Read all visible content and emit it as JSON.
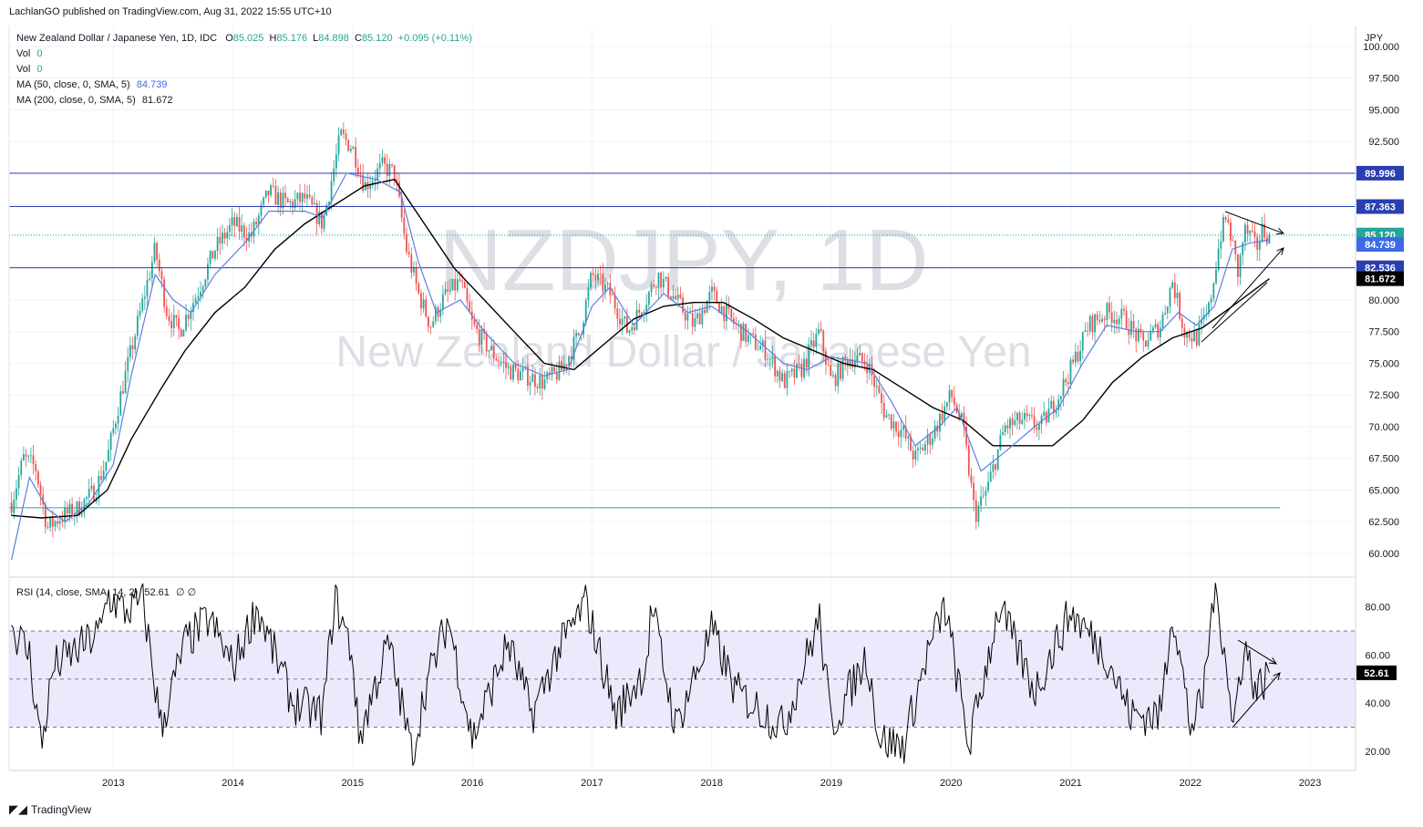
{
  "header": {
    "publisher_line": "LachlanGO published on TradingView.com, Aug 31, 2022 15:55 UTC+10"
  },
  "legend": {
    "symbol": "New Zealand Dollar / Japanese Yen, 1D, IDC",
    "o_label": "O",
    "o_value": "85.025",
    "h_label": "H",
    "h_value": "85.176",
    "l_label": "L",
    "l_value": "84.898",
    "c_label": "C",
    "c_value": "85.120",
    "change": "+0.095 (+0.11%)",
    "vol1_label": "Vol",
    "vol1_value": "0",
    "vol2_label": "Vol",
    "vol2_value": "0",
    "ma50_label": "MA (50, close, 0, SMA, 5)",
    "ma50_value": "84.739",
    "ma200_label": "MA (200, close, 0, SMA, 5)",
    "ma200_value": "81.672",
    "rsi_label": "RSI (14, close, SMA, 14, 2)",
    "rsi_value": "52.61",
    "rsi_extra": "∅ ∅"
  },
  "watermark": {
    "symbol": "NZDJPY, 1D",
    "name": "New Zealand Dollar / Japanese Yen"
  },
  "footer": {
    "brand": "TradingView",
    "logo_icon": "tradingview-logo-icon"
  },
  "colors": {
    "up": "#26a69a",
    "down": "#ef5350",
    "ma50": "#5b7fe0",
    "ma200": "#000000",
    "hline": "#2a3fb0",
    "rsi_band": "#ede8fb",
    "grid": "#f0f3fa"
  },
  "chart_data": [
    {
      "type": "candlestick",
      "title": "New Zealand Dollar / Japanese Yen, 1D, IDC",
      "y_unit": "JPY",
      "x_ticks": [
        "2013",
        "2014",
        "2015",
        "2016",
        "2017",
        "2018",
        "2019",
        "2020",
        "2021",
        "2022",
        "2023"
      ],
      "y_ticks": [
        "60.000",
        "62.500",
        "65.000",
        "67.500",
        "70.000",
        "72.500",
        "75.000",
        "77.500",
        "80.000",
        "82.500",
        "85.000",
        "87.500",
        "90.000",
        "92.500",
        "95.000",
        "97.500",
        "100.000"
      ],
      "ylim": [
        58.2,
        101.5
      ],
      "series_close_approx": [
        {
          "t": 2012.15,
          "v": 64.0
        },
        {
          "t": 2012.25,
          "v": 67.5
        },
        {
          "t": 2012.35,
          "v": 66.8
        },
        {
          "t": 2012.45,
          "v": 62.0
        },
        {
          "t": 2012.55,
          "v": 62.8
        },
        {
          "t": 2012.7,
          "v": 63.5
        },
        {
          "t": 2012.85,
          "v": 65.0
        },
        {
          "t": 2012.95,
          "v": 67.5
        },
        {
          "t": 2013.05,
          "v": 72.0
        },
        {
          "t": 2013.15,
          "v": 76.0
        },
        {
          "t": 2013.25,
          "v": 80.0
        },
        {
          "t": 2013.35,
          "v": 84.0
        },
        {
          "t": 2013.45,
          "v": 79.0
        },
        {
          "t": 2013.55,
          "v": 77.5
        },
        {
          "t": 2013.7,
          "v": 80.5
        },
        {
          "t": 2013.85,
          "v": 84.0
        },
        {
          "t": 2014.0,
          "v": 86.0
        },
        {
          "t": 2014.15,
          "v": 85.0
        },
        {
          "t": 2014.3,
          "v": 88.5
        },
        {
          "t": 2014.45,
          "v": 87.5
        },
        {
          "t": 2014.6,
          "v": 88.0
        },
        {
          "t": 2014.75,
          "v": 86.0
        },
        {
          "t": 2014.9,
          "v": 93.0
        },
        {
          "t": 2015.0,
          "v": 92.0
        },
        {
          "t": 2015.1,
          "v": 89.0
        },
        {
          "t": 2015.25,
          "v": 90.5
        },
        {
          "t": 2015.35,
          "v": 90.0
        },
        {
          "t": 2015.45,
          "v": 84.0
        },
        {
          "t": 2015.55,
          "v": 80.5
        },
        {
          "t": 2015.65,
          "v": 78.0
        },
        {
          "t": 2015.75,
          "v": 80.0
        },
        {
          "t": 2015.9,
          "v": 81.5
        },
        {
          "t": 2016.0,
          "v": 78.0
        },
        {
          "t": 2016.15,
          "v": 76.0
        },
        {
          "t": 2016.3,
          "v": 74.5
        },
        {
          "t": 2016.45,
          "v": 74.0
        },
        {
          "t": 2016.6,
          "v": 73.5
        },
        {
          "t": 2016.75,
          "v": 74.5
        },
        {
          "t": 2016.9,
          "v": 77.5
        },
        {
          "t": 2017.0,
          "v": 82.0
        },
        {
          "t": 2017.15,
          "v": 80.5
        },
        {
          "t": 2017.3,
          "v": 77.5
        },
        {
          "t": 2017.45,
          "v": 80.0
        },
        {
          "t": 2017.55,
          "v": 82.0
        },
        {
          "t": 2017.7,
          "v": 80.0
        },
        {
          "t": 2017.85,
          "v": 78.0
        },
        {
          "t": 2018.0,
          "v": 80.5
        },
        {
          "t": 2018.15,
          "v": 78.5
        },
        {
          "t": 2018.3,
          "v": 77.0
        },
        {
          "t": 2018.45,
          "v": 76.0
        },
        {
          "t": 2018.6,
          "v": 73.5
        },
        {
          "t": 2018.75,
          "v": 74.5
        },
        {
          "t": 2018.9,
          "v": 77.5
        },
        {
          "t": 2019.0,
          "v": 73.5
        },
        {
          "t": 2019.15,
          "v": 75.5
        },
        {
          "t": 2019.3,
          "v": 75.0
        },
        {
          "t": 2019.45,
          "v": 71.0
        },
        {
          "t": 2019.6,
          "v": 69.5
        },
        {
          "t": 2019.7,
          "v": 67.5
        },
        {
          "t": 2019.85,
          "v": 69.5
        },
        {
          "t": 2020.0,
          "v": 72.5
        },
        {
          "t": 2020.1,
          "v": 70.0
        },
        {
          "t": 2020.2,
          "v": 63.0
        },
        {
          "t": 2020.3,
          "v": 65.0
        },
        {
          "t": 2020.45,
          "v": 70.0
        },
        {
          "t": 2020.6,
          "v": 70.5
        },
        {
          "t": 2020.75,
          "v": 70.0
        },
        {
          "t": 2020.9,
          "v": 72.5
        },
        {
          "t": 2021.0,
          "v": 74.5
        },
        {
          "t": 2021.15,
          "v": 78.0
        },
        {
          "t": 2021.3,
          "v": 79.0
        },
        {
          "t": 2021.45,
          "v": 78.5
        },
        {
          "t": 2021.6,
          "v": 76.5
        },
        {
          "t": 2021.75,
          "v": 78.0
        },
        {
          "t": 2021.85,
          "v": 81.5
        },
        {
          "t": 2021.95,
          "v": 77.5
        },
        {
          "t": 2022.05,
          "v": 77.0
        },
        {
          "t": 2022.15,
          "v": 79.0
        },
        {
          "t": 2022.25,
          "v": 85.0
        },
        {
          "t": 2022.3,
          "v": 86.5
        },
        {
          "t": 2022.35,
          "v": 84.5
        },
        {
          "t": 2022.4,
          "v": 82.0
        },
        {
          "t": 2022.45,
          "v": 85.5
        },
        {
          "t": 2022.5,
          "v": 85.0
        },
        {
          "t": 2022.55,
          "v": 84.0
        },
        {
          "t": 2022.6,
          "v": 85.5
        },
        {
          "t": 2022.66,
          "v": 85.12
        }
      ],
      "ma50_approx": [
        {
          "t": 2012.15,
          "v": 59.5
        },
        {
          "t": 2012.3,
          "v": 66.0
        },
        {
          "t": 2012.45,
          "v": 63.5
        },
        {
          "t": 2012.6,
          "v": 62.5
        },
        {
          "t": 2012.8,
          "v": 64.0
        },
        {
          "t": 2013.0,
          "v": 67.0
        },
        {
          "t": 2013.15,
          "v": 74.0
        },
        {
          "t": 2013.35,
          "v": 82.0
        },
        {
          "t": 2013.5,
          "v": 80.0
        },
        {
          "t": 2013.65,
          "v": 79.0
        },
        {
          "t": 2013.85,
          "v": 82.0
        },
        {
          "t": 2014.1,
          "v": 84.5
        },
        {
          "t": 2014.3,
          "v": 87.0
        },
        {
          "t": 2014.6,
          "v": 87.0
        },
        {
          "t": 2014.75,
          "v": 86.5
        },
        {
          "t": 2014.95,
          "v": 90.0
        },
        {
          "t": 2015.2,
          "v": 89.5
        },
        {
          "t": 2015.4,
          "v": 88.5
        },
        {
          "t": 2015.55,
          "v": 83.0
        },
        {
          "t": 2015.7,
          "v": 79.0
        },
        {
          "t": 2015.9,
          "v": 80.0
        },
        {
          "t": 2016.1,
          "v": 77.5
        },
        {
          "t": 2016.35,
          "v": 75.0
        },
        {
          "t": 2016.6,
          "v": 74.0
        },
        {
          "t": 2016.8,
          "v": 74.5
        },
        {
          "t": 2017.0,
          "v": 79.5
        },
        {
          "t": 2017.15,
          "v": 81.0
        },
        {
          "t": 2017.35,
          "v": 78.0
        },
        {
          "t": 2017.6,
          "v": 80.5
        },
        {
          "t": 2017.8,
          "v": 79.0
        },
        {
          "t": 2018.0,
          "v": 79.5
        },
        {
          "t": 2018.3,
          "v": 77.5
        },
        {
          "t": 2018.6,
          "v": 75.0
        },
        {
          "t": 2018.8,
          "v": 74.5
        },
        {
          "t": 2019.0,
          "v": 75.5
        },
        {
          "t": 2019.3,
          "v": 75.0
        },
        {
          "t": 2019.5,
          "v": 72.0
        },
        {
          "t": 2019.7,
          "v": 68.5
        },
        {
          "t": 2019.9,
          "v": 70.0
        },
        {
          "t": 2020.05,
          "v": 71.5
        },
        {
          "t": 2020.25,
          "v": 66.5
        },
        {
          "t": 2020.45,
          "v": 68.0
        },
        {
          "t": 2020.7,
          "v": 70.0
        },
        {
          "t": 2020.9,
          "v": 71.5
        },
        {
          "t": 2021.1,
          "v": 75.0
        },
        {
          "t": 2021.3,
          "v": 78.0
        },
        {
          "t": 2021.55,
          "v": 77.5
        },
        {
          "t": 2021.75,
          "v": 77.5
        },
        {
          "t": 2021.9,
          "v": 79.0
        },
        {
          "t": 2022.05,
          "v": 78.0
        },
        {
          "t": 2022.2,
          "v": 79.5
        },
        {
          "t": 2022.35,
          "v": 84.0
        },
        {
          "t": 2022.5,
          "v": 84.5
        },
        {
          "t": 2022.66,
          "v": 84.739
        }
      ],
      "ma200_approx": [
        {
          "t": 2012.15,
          "v": 63.0
        },
        {
          "t": 2012.4,
          "v": 62.8
        },
        {
          "t": 2012.7,
          "v": 63.0
        },
        {
          "t": 2012.95,
          "v": 65.0
        },
        {
          "t": 2013.15,
          "v": 69.0
        },
        {
          "t": 2013.4,
          "v": 73.0
        },
        {
          "t": 2013.6,
          "v": 76.0
        },
        {
          "t": 2013.85,
          "v": 79.0
        },
        {
          "t": 2014.1,
          "v": 81.0
        },
        {
          "t": 2014.35,
          "v": 84.0
        },
        {
          "t": 2014.6,
          "v": 86.0
        },
        {
          "t": 2014.85,
          "v": 87.5
        },
        {
          "t": 2015.1,
          "v": 89.0
        },
        {
          "t": 2015.35,
          "v": 89.5
        },
        {
          "t": 2015.6,
          "v": 86.0
        },
        {
          "t": 2015.85,
          "v": 82.5
        },
        {
          "t": 2016.1,
          "v": 80.0
        },
        {
          "t": 2016.35,
          "v": 77.5
        },
        {
          "t": 2016.6,
          "v": 75.0
        },
        {
          "t": 2016.85,
          "v": 74.5
        },
        {
          "t": 2017.1,
          "v": 76.5
        },
        {
          "t": 2017.35,
          "v": 78.5
        },
        {
          "t": 2017.6,
          "v": 79.5
        },
        {
          "t": 2017.85,
          "v": 79.8
        },
        {
          "t": 2018.1,
          "v": 79.8
        },
        {
          "t": 2018.35,
          "v": 78.5
        },
        {
          "t": 2018.6,
          "v": 77.0
        },
        {
          "t": 2018.85,
          "v": 76.0
        },
        {
          "t": 2019.1,
          "v": 75.0
        },
        {
          "t": 2019.35,
          "v": 74.5
        },
        {
          "t": 2019.6,
          "v": 73.0
        },
        {
          "t": 2019.85,
          "v": 71.5
        },
        {
          "t": 2020.1,
          "v": 70.5
        },
        {
          "t": 2020.35,
          "v": 68.5
        },
        {
          "t": 2020.6,
          "v": 68.5
        },
        {
          "t": 2020.85,
          "v": 68.5
        },
        {
          "t": 2021.1,
          "v": 70.5
        },
        {
          "t": 2021.35,
          "v": 73.5
        },
        {
          "t": 2021.6,
          "v": 75.5
        },
        {
          "t": 2021.85,
          "v": 77.0
        },
        {
          "t": 2022.1,
          "v": 77.8
        },
        {
          "t": 2022.35,
          "v": 79.5
        },
        {
          "t": 2022.66,
          "v": 81.672
        }
      ],
      "horizontal_levels": [
        {
          "label": "89.996",
          "value": 89.996,
          "bg": "#2a3fb0"
        },
        {
          "label": "87.363",
          "value": 87.363,
          "bg": "#2a3fb0"
        },
        {
          "label": "82.536",
          "value": 82.536,
          "bg": "#2a3fb0"
        },
        {
          "value": 63.6,
          "color": "#26a69a"
        }
      ],
      "price_labels": [
        {
          "label": "85.120",
          "value": 85.12,
          "bg": "#26a69a"
        },
        {
          "label": "84.739",
          "value": 84.739,
          "bg": "#3d6be8"
        },
        {
          "label": "81.672",
          "value": 81.672,
          "bg": "#000000"
        }
      ]
    },
    {
      "type": "line",
      "title": "RSI (14, close, SMA, 14, 2)",
      "y_ticks": [
        "20.00",
        "40.00",
        "60.00",
        "80.00"
      ],
      "ylim": [
        12,
        92
      ],
      "band": [
        30,
        70
      ],
      "midline": 50,
      "last_value_label": "52.61",
      "series_approx": [
        {
          "t": 2012.15,
          "v": 72
        },
        {
          "t": 2012.3,
          "v": 60
        },
        {
          "t": 2012.4,
          "v": 22
        },
        {
          "t": 2012.5,
          "v": 55
        },
        {
          "t": 2012.7,
          "v": 62
        },
        {
          "t": 2012.9,
          "v": 70
        },
        {
          "t": 2012.95,
          "v": 85
        },
        {
          "t": 2013.1,
          "v": 78
        },
        {
          "t": 2013.25,
          "v": 82
        },
        {
          "t": 2013.4,
          "v": 30
        },
        {
          "t": 2013.6,
          "v": 65
        },
        {
          "t": 2013.8,
          "v": 75
        },
        {
          "t": 2014.0,
          "v": 55
        },
        {
          "t": 2014.2,
          "v": 80
        },
        {
          "t": 2014.5,
          "v": 40
        },
        {
          "t": 2014.75,
          "v": 35
        },
        {
          "t": 2014.85,
          "v": 84
        },
        {
          "t": 2015.0,
          "v": 60
        },
        {
          "t": 2015.05,
          "v": 25
        },
        {
          "t": 2015.3,
          "v": 65
        },
        {
          "t": 2015.5,
          "v": 18
        },
        {
          "t": 2015.6,
          "v": 45
        },
        {
          "t": 2015.8,
          "v": 75
        },
        {
          "t": 2016.0,
          "v": 25
        },
        {
          "t": 2016.3,
          "v": 65
        },
        {
          "t": 2016.5,
          "v": 35
        },
        {
          "t": 2016.7,
          "v": 60
        },
        {
          "t": 2016.95,
          "v": 82
        },
        {
          "t": 2017.2,
          "v": 35
        },
        {
          "t": 2017.45,
          "v": 55
        },
        {
          "t": 2017.5,
          "v": 80
        },
        {
          "t": 2017.7,
          "v": 30
        },
        {
          "t": 2018.0,
          "v": 70
        },
        {
          "t": 2018.2,
          "v": 45
        },
        {
          "t": 2018.6,
          "v": 30
        },
        {
          "t": 2018.9,
          "v": 75
        },
        {
          "t": 2019.0,
          "v": 30
        },
        {
          "t": 2019.3,
          "v": 60
        },
        {
          "t": 2019.4,
          "v": 25
        },
        {
          "t": 2019.6,
          "v": 22
        },
        {
          "t": 2019.8,
          "v": 60
        },
        {
          "t": 2019.95,
          "v": 80
        },
        {
          "t": 2020.15,
          "v": 22
        },
        {
          "t": 2020.4,
          "v": 80
        },
        {
          "t": 2020.7,
          "v": 45
        },
        {
          "t": 2021.0,
          "v": 78
        },
        {
          "t": 2021.3,
          "v": 60
        },
        {
          "t": 2021.5,
          "v": 35
        },
        {
          "t": 2021.75,
          "v": 35
        },
        {
          "t": 2021.85,
          "v": 80
        },
        {
          "t": 2022.0,
          "v": 30
        },
        {
          "t": 2022.1,
          "v": 40
        },
        {
          "t": 2022.2,
          "v": 88
        },
        {
          "t": 2022.3,
          "v": 60
        },
        {
          "t": 2022.35,
          "v": 28
        },
        {
          "t": 2022.45,
          "v": 65
        },
        {
          "t": 2022.55,
          "v": 45
        },
        {
          "t": 2022.66,
          "v": 52.61
        }
      ]
    }
  ]
}
